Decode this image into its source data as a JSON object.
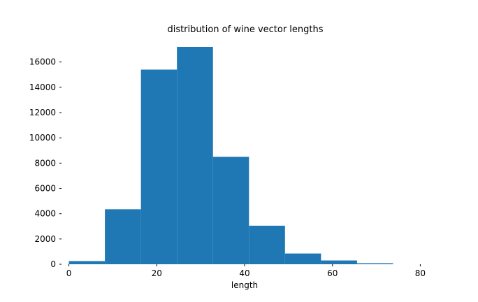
{
  "chart_data": {
    "type": "bar",
    "title": "distribution of wine vector lengths",
    "xlabel": "length",
    "ylabel": "",
    "bin_edges": [
      0.0,
      8.2,
      16.4,
      24.6,
      32.8,
      41.0,
      49.2,
      57.4,
      65.6,
      73.8
    ],
    "values": [
      250,
      4350,
      15400,
      17200,
      8500,
      3050,
      850,
      300,
      80
    ],
    "xlim": [
      -2,
      82
    ],
    "ylim": [
      0,
      17200
    ],
    "xticks": [
      0,
      20,
      40,
      60,
      80
    ],
    "xtick_labels": [
      "0",
      "20",
      "40",
      "60",
      "80"
    ],
    "yticks": [
      0,
      2000,
      4000,
      6000,
      8000,
      10000,
      12000,
      14000,
      16000
    ],
    "ytick_labels": [
      "0",
      "2000",
      "4000",
      "6000",
      "8000",
      "10000",
      "12000",
      "14000",
      "16000"
    ],
    "bar_color": "#1f77b4",
    "grid": false,
    "legend": "none"
  }
}
